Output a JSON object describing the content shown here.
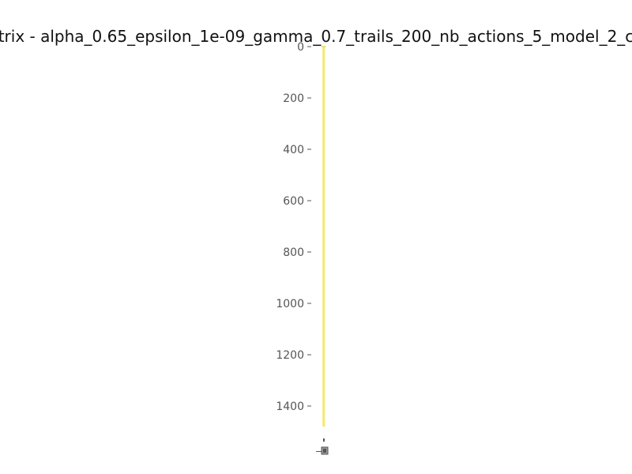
{
  "chart_data": {
    "type": "heatmap",
    "title": "trix - alpha_0.65_epsilon_1e-09_gamma_0.7_trails_200_nb_actions_5_model_2_c",
    "xlabel": "",
    "ylabel": "",
    "ylim": [
      0,
      1480
    ],
    "ytick_labels": [
      "0",
      "200",
      "400",
      "600",
      "800",
      "1000",
      "1200",
      "1400"
    ],
    "ytick_values": [
      0,
      200,
      400,
      600,
      800,
      1000,
      1200,
      1400
    ],
    "grid": false,
    "colormap_color": "#fde725",
    "lower_color": "#e6e080",
    "tick_color": "#555555",
    "title_color": "#111111"
  }
}
